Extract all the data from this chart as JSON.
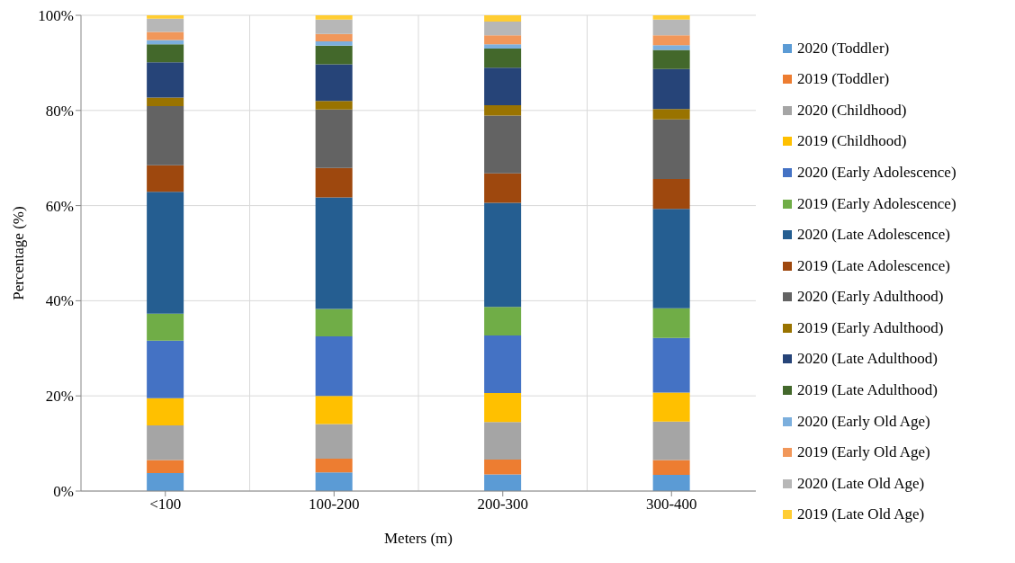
{
  "chart_data": {
    "type": "bar",
    "stacked": true,
    "xlabel": "Meters (m)",
    "ylabel": "Percentage (%)",
    "categories": [
      "<100",
      "100-200",
      "200-300",
      "300-400"
    ],
    "ylim": [
      0,
      100
    ],
    "yticks": [
      {
        "value": 0,
        "label": "0%"
      },
      {
        "value": 20,
        "label": "20%"
      },
      {
        "value": 40,
        "label": "40%"
      },
      {
        "value": 60,
        "label": "60%"
      },
      {
        "value": 80,
        "label": "80%"
      },
      {
        "value": 100,
        "label": "100%"
      }
    ],
    "grid": true,
    "legend": "right",
    "series": [
      {
        "name": "2020 (Toddler)",
        "color": "#5b9bd5",
        "values": [
          3.8,
          3.9,
          3.5,
          3.4
        ]
      },
      {
        "name": "2019 (Toddler)",
        "color": "#ed7d31",
        "values": [
          2.7,
          2.9,
          3.1,
          3.1
        ]
      },
      {
        "name": "2020 (Childhood)",
        "color": "#a5a5a5",
        "values": [
          7.3,
          7.3,
          7.9,
          8.1
        ]
      },
      {
        "name": "2019 (Childhood)",
        "color": "#ffc000",
        "values": [
          5.7,
          5.9,
          6.1,
          6.1
        ]
      },
      {
        "name": "2020 (Early Adolescence)",
        "color": "#4472c4",
        "values": [
          12.1,
          12.5,
          12.1,
          11.5
        ]
      },
      {
        "name": "2019 (Early Adolescence)",
        "color": "#70ad47",
        "values": [
          5.7,
          5.8,
          6.0,
          6.2
        ]
      },
      {
        "name": "2020 (Late Adolescence)",
        "color": "#255e91",
        "values": [
          25.6,
          23.4,
          21.9,
          20.9
        ]
      },
      {
        "name": "2019 (Late Adolescence)",
        "color": "#9e480e",
        "values": [
          5.6,
          6.2,
          6.2,
          6.3
        ]
      },
      {
        "name": "2020 (Early Adulthood)",
        "color": "#636363",
        "values": [
          12.4,
          12.3,
          12.1,
          12.5
        ]
      },
      {
        "name": "2019 (Early Adulthood)",
        "color": "#997300",
        "values": [
          1.8,
          1.8,
          2.2,
          2.2
        ]
      },
      {
        "name": "2020 (Late Adulthood)",
        "color": "#264478",
        "values": [
          7.4,
          7.7,
          7.9,
          8.4
        ]
      },
      {
        "name": "2019 (Late Adulthood)",
        "color": "#43682b",
        "values": [
          3.8,
          3.9,
          4.0,
          4.0
        ]
      },
      {
        "name": "2020 (Early Old Age)",
        "color": "#7cafdd",
        "values": [
          0.9,
          0.9,
          0.9,
          1.0
        ]
      },
      {
        "name": "2019 (Early Old Age)",
        "color": "#f1975a",
        "values": [
          1.7,
          1.6,
          1.9,
          2.1
        ]
      },
      {
        "name": "2020 (Late Old Age)",
        "color": "#b7b7b7",
        "values": [
          2.8,
          3.0,
          2.9,
          3.3
        ]
      },
      {
        "name": "2019 (Late Old Age)",
        "color": "#ffcd33",
        "values": [
          0.7,
          0.9,
          1.3,
          0.9
        ]
      }
    ]
  }
}
